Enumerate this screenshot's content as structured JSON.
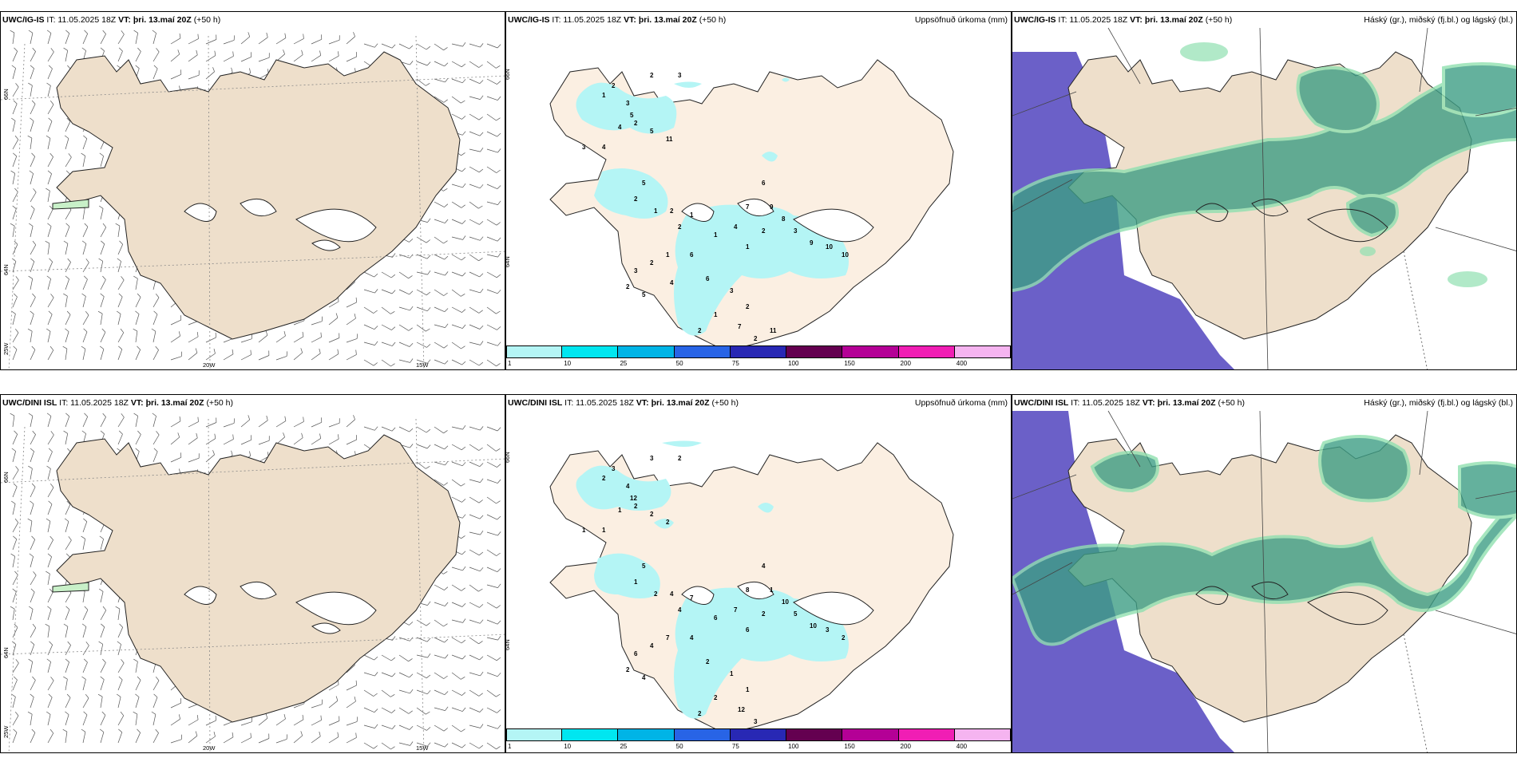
{
  "rows": [
    {
      "wind": {
        "model": "UWC/IG-IS",
        "it": "IT: 11.05.2025 18Z",
        "vt_label": "VT:",
        "vt": "þri. 13.maí 20Z",
        "lead": "(+50 h)"
      },
      "precip": {
        "model": "UWC/IG-IS",
        "it": "IT: 11.05.2025 18Z",
        "vt_label": "VT:",
        "vt": "þri. 13.maí 20Z",
        "lead": "(+50 h)",
        "title": "Uppsöfnuð úrkoma (mm)"
      },
      "cloud": {
        "model": "UWC/IG-IS",
        "it": "IT: 11.05.2025 18Z",
        "vt_label": "VT:",
        "vt": "þri. 13.maí 20Z",
        "lead": "(+50 h)",
        "title": "Háský (gr.), miðský (fj.bl.) og lágský (bl.)"
      },
      "precip_numbers": [
        "2",
        "3",
        "1",
        "2",
        "3",
        "5",
        "5",
        "11",
        "2",
        "4",
        "3",
        "4",
        "5",
        "2",
        "1",
        "2",
        "2",
        "1",
        "1",
        "4",
        "1",
        "2",
        "9",
        "6",
        "7",
        "8",
        "3",
        "9",
        "10",
        "10",
        "6",
        "1",
        "2",
        "3",
        "2",
        "5",
        "6",
        "3",
        "2",
        "1",
        "2",
        "7",
        "2",
        "11",
        "4"
      ]
    },
    {
      "wind": {
        "model": "UWC/DINI ISL",
        "it": "IT: 11.05.2025 18Z",
        "vt_label": "VT:",
        "vt": "þri. 13.maí 20Z",
        "lead": "(+50 h)"
      },
      "precip": {
        "model": "UWC/DINI ISL",
        "it": "IT: 11.05.2025 18Z",
        "vt_label": "VT:",
        "vt": "þri. 13.maí 20Z",
        "lead": "(+50 h)",
        "title": "Uppsöfnuð úrkoma (mm)"
      },
      "cloud": {
        "model": "UWC/DINI ISL",
        "it": "IT: 11.05.2025 18Z",
        "vt_label": "VT:",
        "vt": "þri. 13.maí 20Z",
        "lead": "(+50 h)",
        "title": "Háský (gr.), miðský (fj.bl.) og lágský (bl.)"
      },
      "precip_numbers": [
        "3",
        "2",
        "2",
        "3",
        "4",
        "12",
        "2",
        "2",
        "2",
        "1",
        "1",
        "1",
        "5",
        "1",
        "2",
        "4",
        "4",
        "7",
        "6",
        "7",
        "6",
        "2",
        "1",
        "4",
        "8",
        "10",
        "5",
        "10",
        "3",
        "2",
        "4",
        "7",
        "4",
        "6",
        "2",
        "4",
        "2",
        "1",
        "1",
        "2",
        "2",
        "12",
        "3"
      ]
    }
  ],
  "map_labels": {
    "lat66": "66N",
    "lat64": "64N",
    "lon25": "25W",
    "lon20": "20W",
    "lon15": "15W"
  },
  "colorbar": {
    "colors": [
      "#b4f5f5",
      "#00e6f0",
      "#00b4e6",
      "#2864e6",
      "#2828b4",
      "#640050",
      "#b40096",
      "#f01eb4",
      "#f5b4f0"
    ],
    "ticks": [
      "1",
      "10",
      "25",
      "50",
      "75",
      "100",
      "150",
      "200",
      "400"
    ]
  },
  "colors": {
    "land": "#eedfcb",
    "precip_land": "#fbefe2",
    "rain": "#b4f5f5",
    "high_cloud": "#6b60c8",
    "mid_cloud": "#3e9e85",
    "low_cloud": "#90e0b0"
  }
}
